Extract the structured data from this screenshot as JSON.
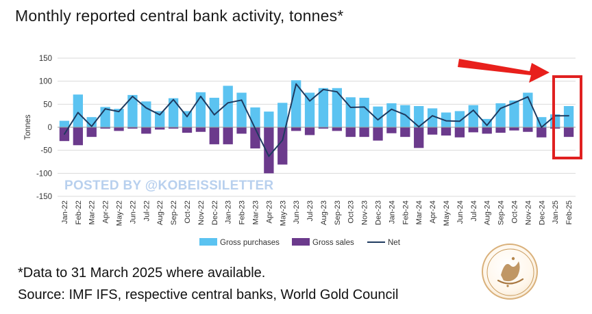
{
  "title": "Monthly reported central bank activity, tonnes*",
  "watermark": "POSTED BY @KOBEISSILETTER",
  "footnote": "*Data to 31 March 2025 where available.",
  "source": "Source: IMF IFS, respective central banks, World Gold Council",
  "colors": {
    "purchases": "#5bc3f1",
    "sales": "#6b3a8c",
    "net": "#1e3a5f",
    "highlight": "#e02020",
    "arrow": "#e8201c",
    "grid": "#d9d9d9"
  },
  "chart_data": {
    "type": "bar",
    "title": "Monthly reported central bank activity, tonnes*",
    "ylabel": "Tonnes",
    "xlabel": "",
    "ylim": [
      -150,
      150
    ],
    "yticks": [
      150,
      100,
      50,
      0,
      -50,
      -100,
      -150
    ],
    "grid": true,
    "legend_position": "bottom",
    "categories": [
      "Jan-22",
      "Feb-22",
      "Mar-22",
      "Apr-22",
      "May-22",
      "Jun-22",
      "Jul-22",
      "Aug-22",
      "Sep-22",
      "Oct-22",
      "Nov-22",
      "Dec-22",
      "Jan-23",
      "Feb-23",
      "Mar-23",
      "Apr-23",
      "May-23",
      "Jun-23",
      "Jul-23",
      "Aug-23",
      "Sep-23",
      "Oct-23",
      "Nov-23",
      "Dec-23",
      "Jan-24",
      "Feb-24",
      "Mar-24",
      "Apr-24",
      "May-24",
      "Jun-24",
      "Jul-24",
      "Aug-24",
      "Sep-24",
      "Oct-24",
      "Nov-24",
      "Dec-24",
      "Jan-25",
      "Feb-25"
    ],
    "series": [
      {
        "name": "Gross purchases",
        "kind": "bar",
        "values": [
          14,
          71,
          22,
          44,
          40,
          70,
          56,
          35,
          63,
          35,
          76,
          64,
          90,
          75,
          43,
          34,
          53,
          102,
          75,
          85,
          85,
          65,
          64,
          45,
          52,
          48,
          46,
          41,
          32,
          35,
          48,
          18,
          52,
          58,
          75,
          22,
          28,
          46
        ]
      },
      {
        "name": "Gross sales",
        "kind": "bar",
        "values": [
          -30,
          -39,
          -21,
          -3,
          -8,
          -3,
          -14,
          -5,
          -3,
          -12,
          -10,
          -37,
          -37,
          -14,
          -46,
          -100,
          -81,
          -8,
          -17,
          -3,
          -8,
          -21,
          -21,
          -29,
          -13,
          -21,
          -45,
          -16,
          -18,
          -22,
          -11,
          -14,
          -12,
          -7,
          -10,
          -22,
          -3,
          -21
        ]
      },
      {
        "name": "Net",
        "kind": "line",
        "values": [
          -15,
          32,
          2,
          40,
          34,
          67,
          42,
          27,
          60,
          23,
          67,
          27,
          53,
          59,
          -3,
          -63,
          -28,
          94,
          57,
          82,
          77,
          43,
          44,
          16,
          39,
          27,
          1,
          25,
          14,
          13,
          37,
          4,
          41,
          53,
          66,
          0,
          25,
          25
        ]
      }
    ],
    "legend": [
      "Gross purchases",
      "Gross sales",
      "Net"
    ],
    "annotation": "Red arrow and box highlighting Jan-25 to Feb-25"
  }
}
